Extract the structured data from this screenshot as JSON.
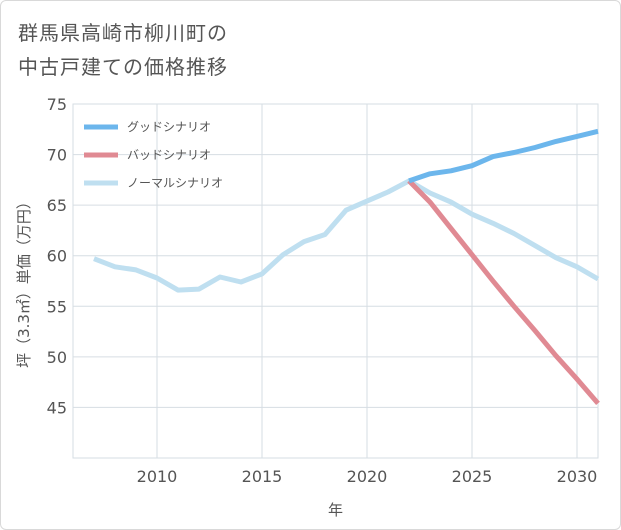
{
  "title_line1": "群馬県高崎市柳川町の",
  "title_line2": "中古戸建ての価格推移",
  "chart_data": {
    "type": "line",
    "xlabel": "年",
    "ylabel": "坪（3.3㎡）単価（万円）",
    "xlim": [
      2006,
      2031
    ],
    "ylim": [
      40,
      75
    ],
    "xticks": [
      2010,
      2015,
      2020,
      2025,
      2030
    ],
    "yticks": [
      45,
      50,
      55,
      60,
      65,
      70,
      75
    ],
    "grid": true,
    "legend_position": "top-left",
    "series": [
      {
        "name": "グッドシナリオ",
        "color": "#6cb6ec",
        "x": [
          2022,
          2023,
          2024,
          2025,
          2026,
          2027,
          2028,
          2029,
          2030,
          2031
        ],
        "y": [
          67.4,
          68.1,
          68.4,
          68.9,
          69.8,
          70.2,
          70.7,
          71.3,
          71.8,
          72.3
        ]
      },
      {
        "name": "バッドシナリオ",
        "color": "#e08a93",
        "x": [
          2022,
          2023,
          2024,
          2025,
          2026,
          2027,
          2028,
          2029,
          2030,
          2031
        ],
        "y": [
          67.4,
          65.3,
          62.7,
          60.1,
          57.5,
          55.0,
          52.6,
          50.1,
          47.8,
          45.4
        ]
      },
      {
        "name": "ノーマルシナリオ",
        "color": "#bfdff0",
        "x": [
          2007,
          2008,
          2009,
          2010,
          2011,
          2012,
          2013,
          2014,
          2015,
          2016,
          2017,
          2018,
          2019,
          2020,
          2021,
          2022,
          2023,
          2024,
          2025,
          2026,
          2027,
          2028,
          2029,
          2030,
          2031
        ],
        "y": [
          59.7,
          58.9,
          58.6,
          57.8,
          56.6,
          56.7,
          57.9,
          57.4,
          58.2,
          60.1,
          61.4,
          62.1,
          64.5,
          65.4,
          66.3,
          67.4,
          66.2,
          65.3,
          64.1,
          63.2,
          62.2,
          61.0,
          59.8,
          58.9,
          57.7
        ]
      }
    ]
  }
}
